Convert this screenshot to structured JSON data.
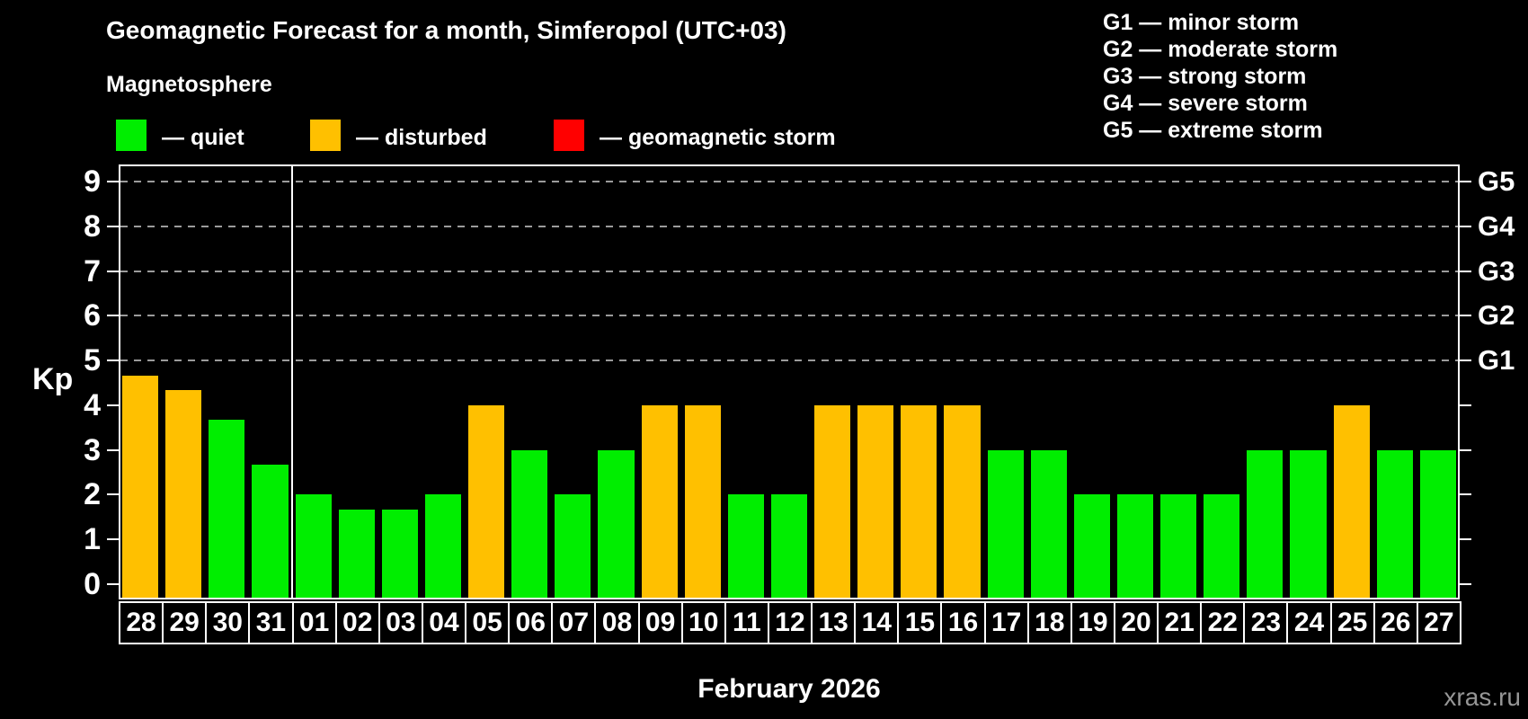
{
  "title": "Geomagnetic Forecast for a month, Simferopol (UTC+03)",
  "subtitle": "Magnetosphere",
  "legend": [
    {
      "label": "— quiet",
      "color": "#00EE00",
      "status": "quiet"
    },
    {
      "label": "— disturbed",
      "color": "#FFC000",
      "status": "disturbed"
    },
    {
      "label": "— geomagnetic storm",
      "color": "#FF0000",
      "status": "storm"
    }
  ],
  "g_legend": [
    "G1 — minor storm",
    "G2 — moderate storm",
    "G3 — strong storm",
    "G4 — severe storm",
    "G5 — extreme storm"
  ],
  "chart_data": {
    "type": "bar",
    "title": "Geomagnetic Forecast for a month, Simferopol (UTC+03)",
    "ylabel": "Kp",
    "xlabel": "February 2026",
    "ylim": [
      0,
      9
    ],
    "yticks": [
      "0",
      "1",
      "2",
      "3",
      "4",
      "5",
      "6",
      "7",
      "8",
      "9"
    ],
    "grid": "dashed horizontal lines at Kp 5-9 only",
    "right_axis": [
      {
        "label": "G1",
        "kp": 5
      },
      {
        "label": "G2",
        "kp": 6
      },
      {
        "label": "G3",
        "kp": 7
      },
      {
        "label": "G4",
        "kp": 8
      },
      {
        "label": "G5",
        "kp": 9
      }
    ],
    "categories": [
      "28",
      "29",
      "30",
      "31",
      "01",
      "02",
      "03",
      "04",
      "05",
      "06",
      "07",
      "08",
      "09",
      "10",
      "11",
      "12",
      "13",
      "14",
      "15",
      "16",
      "17",
      "18",
      "19",
      "20",
      "21",
      "22",
      "23",
      "24",
      "25",
      "26",
      "27"
    ],
    "series": [
      {
        "name": "Kp forecast",
        "values": [
          4.67,
          4.33,
          3.67,
          2.67,
          2,
          1.67,
          1.67,
          2,
          4,
          3,
          2,
          3,
          4,
          4,
          2,
          2,
          4,
          4,
          4,
          4,
          3,
          3,
          2,
          2,
          2,
          2,
          3,
          3,
          4,
          3,
          3
        ],
        "statuses": [
          "disturbed",
          "disturbed",
          "quiet",
          "quiet",
          "quiet",
          "quiet",
          "quiet",
          "quiet",
          "disturbed",
          "quiet",
          "quiet",
          "quiet",
          "disturbed",
          "disturbed",
          "quiet",
          "quiet",
          "disturbed",
          "disturbed",
          "disturbed",
          "disturbed",
          "quiet",
          "quiet",
          "quiet",
          "quiet",
          "quiet",
          "quiet",
          "quiet",
          "quiet",
          "disturbed",
          "quiet",
          "quiet"
        ]
      }
    ],
    "status_colors": {
      "quiet": "#00EE00",
      "disturbed": "#FFC000",
      "storm": "#FF0000"
    },
    "month_boundary_after_index": 3
  },
  "footer": {
    "month_label": "February 2026",
    "watermark": "xras.ru"
  }
}
